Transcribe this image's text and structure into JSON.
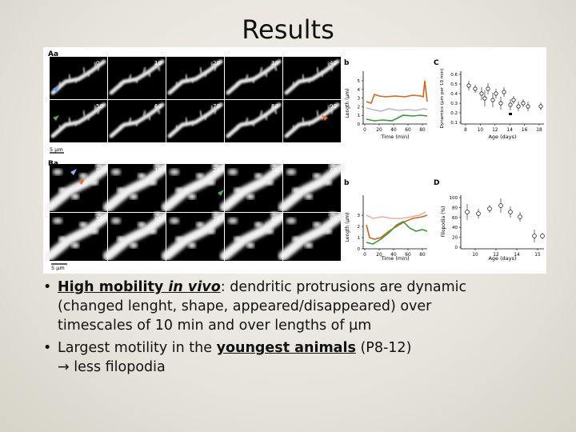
{
  "slide": {
    "title": "Results",
    "bullets": [
      {
        "part1": "High mobility ",
        "part2": "in vivo",
        "part3": ": dendritic protrusions are dynamic",
        "line2": "(changed lenght, shape, appeared/disappeared) over",
        "line3": "timescales of 10 min and over lengths of µm"
      },
      {
        "part1": "Largest motility in the ",
        "part2": "youngest animals",
        "part3": " (P8-12)",
        "line2": "→ less filopodia"
      }
    ],
    "bullet_char": "•"
  },
  "figure": {
    "panel_Aa": "Aa",
    "panel_Ba": "Ba",
    "panel_b1": "b",
    "panel_c": "C",
    "panel_b2": "b",
    "panel_D": "D",
    "A_times_row1": [
      "0",
      "10",
      "20",
      "30",
      "40"
    ],
    "A_times_row2": [
      "50",
      "60",
      "70",
      "80",
      "90"
    ],
    "B_times_row1": [
      "0",
      "10",
      "20",
      "30",
      "40"
    ],
    "B_times_row2": [
      "50",
      "60",
      "70",
      "80",
      "90"
    ],
    "scale_A": "5 µm",
    "scale_B": "5 µm",
    "chart_b1": {
      "ylabel": "Length (µm)",
      "xlabel": "Time (min)",
      "yticks": [
        "5",
        "4",
        "3",
        "2",
        "1",
        "0"
      ],
      "xticks": [
        "0",
        "20",
        "40",
        "60",
        "80"
      ]
    },
    "chart_c": {
      "ylabel": "Dynamics (µm per 10 min)",
      "xlabel": "Age (days)",
      "yticks": [
        "0.6",
        "0.5",
        "0.4",
        "0.3",
        "0.2",
        "0.1"
      ],
      "xticks": [
        "8",
        "10",
        "12",
        "14",
        "16",
        "18"
      ]
    },
    "chart_b2": {
      "ylabel": "Length (µm)",
      "xlabel": "Time (min)",
      "yticks": [
        "3",
        "2",
        "1",
        "0"
      ],
      "xticks": [
        "0",
        "20",
        "40",
        "60",
        "80"
      ]
    },
    "chart_D": {
      "ylabel": "Filopodia (%)",
      "xlabel": "Age (days)",
      "yticks": [
        "100",
        "80",
        "60",
        "40",
        "20",
        "0"
      ],
      "xticks": [
        "10",
        "12",
        "14",
        "15"
      ]
    }
  }
}
